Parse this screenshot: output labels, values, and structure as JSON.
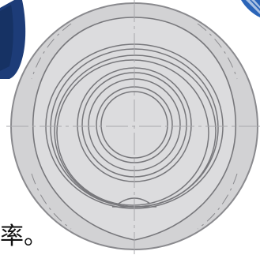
{
  "caption": {
    "text": "率。"
  },
  "colors": {
    "background": "#ffffff",
    "disk_fill": "#d2d2d4",
    "disk_stroke": "#8a8a8e",
    "inner_fill": "#dcdcde",
    "ring_stroke": "#77777b",
    "centerline": "#a8a8ac",
    "logo_dark": "#1d3c78",
    "logo_light": "#2a64b8"
  },
  "icons": [
    "logo-fragment-icon",
    "corner-emblem-icon"
  ]
}
